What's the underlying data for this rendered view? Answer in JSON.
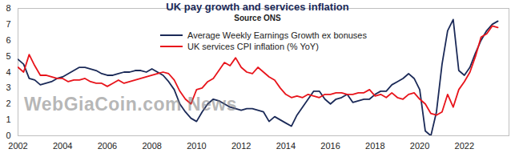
{
  "chart_data": {
    "type": "line",
    "title": "UK pay growth and services inflation",
    "subtitle": "Source ONS",
    "annotations": [
      "WebGiaCoin.com News"
    ],
    "x": [
      2002,
      2002.25,
      2002.5,
      2002.75,
      2003,
      2003.25,
      2003.5,
      2003.75,
      2004,
      2004.25,
      2004.5,
      2004.75,
      2005,
      2005.25,
      2005.5,
      2005.75,
      2006,
      2006.25,
      2006.5,
      2006.75,
      2007,
      2007.25,
      2007.5,
      2007.75,
      2008,
      2008.25,
      2008.5,
      2008.75,
      2009,
      2009.25,
      2009.5,
      2009.75,
      2010,
      2010.25,
      2010.5,
      2010.75,
      2011,
      2011.25,
      2011.5,
      2011.75,
      2012,
      2012.25,
      2012.5,
      2012.75,
      2013,
      2013.25,
      2013.5,
      2013.75,
      2014,
      2014.25,
      2014.5,
      2014.75,
      2015,
      2015.25,
      2015.5,
      2015.75,
      2016,
      2016.25,
      2016.5,
      2016.75,
      2017,
      2017.25,
      2017.5,
      2017.75,
      2018,
      2018.25,
      2018.5,
      2018.75,
      2019,
      2019.25,
      2019.5,
      2019.75,
      2020,
      2020.25,
      2020.5,
      2020.75,
      2021,
      2021.25,
      2021.5,
      2021.75,
      2022,
      2022.25,
      2022.5,
      2022.75,
      2023,
      2023.25,
      2023.5
    ],
    "series": [
      {
        "name": "Average Weekly Earnings Growth ex bonuses",
        "color": "#1b2a58",
        "values": [
          4.8,
          4.5,
          3.6,
          3.5,
          3.2,
          3.3,
          3.4,
          3.6,
          3.7,
          3.9,
          4.1,
          4.3,
          4.3,
          4.2,
          4.1,
          3.9,
          3.8,
          3.8,
          3.9,
          4.0,
          4.0,
          4.1,
          4.1,
          4.0,
          4.2,
          4.0,
          3.8,
          3.4,
          2.9,
          2.0,
          1.5,
          1.1,
          0.9,
          1.5,
          2.0,
          2.3,
          2.2,
          2.0,
          1.8,
          1.7,
          1.6,
          1.7,
          1.7,
          1.6,
          1.5,
          0.9,
          1.2,
          1.0,
          0.8,
          0.6,
          1.3,
          1.8,
          2.3,
          2.8,
          2.8,
          2.3,
          2.0,
          2.3,
          2.4,
          2.6,
          2.1,
          2.2,
          2.3,
          2.3,
          2.6,
          2.8,
          2.8,
          3.2,
          3.4,
          3.6,
          3.9,
          3.6,
          2.9,
          0.3,
          0.0,
          1.5,
          4.5,
          6.6,
          7.3,
          4.1,
          3.8,
          4.3,
          5.2,
          6.0,
          6.6,
          7.0,
          7.2
        ]
      },
      {
        "name": "UK services CPI inflation (% YoY)",
        "color": "#e8141b",
        "values": [
          4.3,
          4.0,
          5.1,
          4.4,
          3.8,
          3.8,
          3.7,
          3.6,
          3.6,
          3.4,
          3.5,
          3.5,
          3.6,
          3.4,
          3.3,
          3.3,
          3.1,
          3.3,
          3.5,
          3.3,
          3.4,
          3.5,
          3.6,
          3.7,
          3.8,
          3.9,
          4.0,
          3.9,
          3.5,
          2.8,
          2.3,
          2.0,
          2.9,
          3.0,
          3.4,
          3.6,
          4.1,
          4.6,
          4.4,
          4.9,
          4.3,
          4.0,
          3.9,
          4.3,
          4.0,
          3.7,
          3.5,
          3.0,
          2.6,
          2.4,
          2.5,
          2.4,
          2.6,
          2.5,
          2.4,
          2.6,
          2.6,
          2.7,
          2.7,
          2.6,
          2.6,
          2.7,
          2.7,
          2.9,
          2.5,
          2.6,
          2.4,
          2.7,
          2.4,
          2.3,
          2.6,
          2.7,
          2.3,
          2.0,
          1.4,
          1.3,
          1.5,
          2.6,
          1.8,
          2.9,
          3.4,
          4.0,
          5.0,
          6.2,
          6.4,
          6.9,
          6.8
        ]
      }
    ],
    "xlim": [
      2002,
      2024
    ],
    "xticks": [
      2002,
      2004,
      2006,
      2008,
      2010,
      2012,
      2014,
      2016,
      2018,
      2020,
      2022
    ],
    "ylim": [
      0,
      8
    ],
    "yticks": [
      0,
      1,
      2,
      3,
      4,
      5,
      6,
      7,
      8
    ],
    "grid": false,
    "legend": "top"
  }
}
